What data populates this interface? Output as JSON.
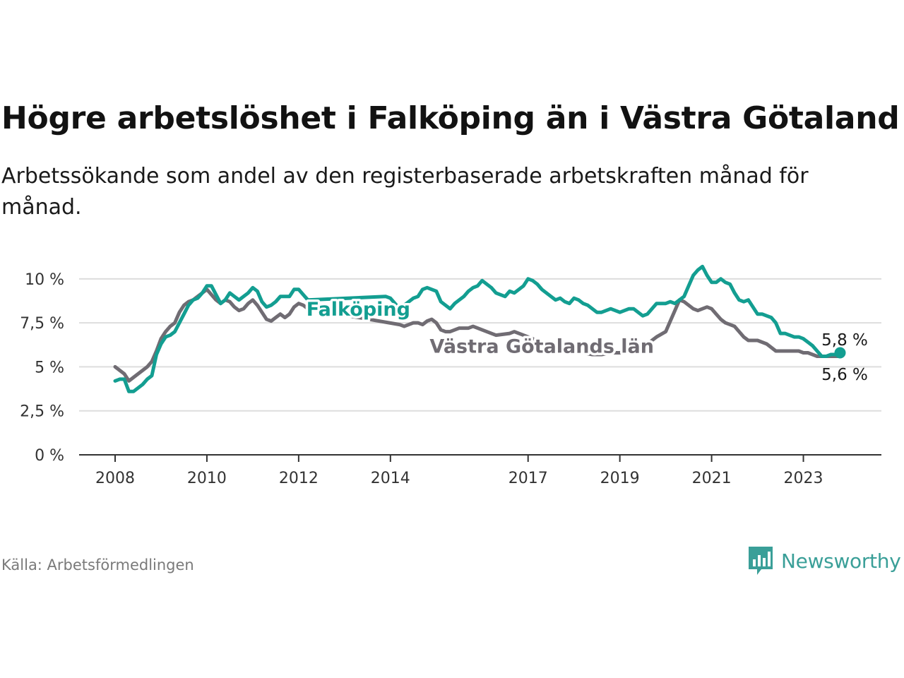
{
  "header": {
    "title": "Högre arbetslöshet i Falköping än i Västra Götaland",
    "subtitle": "Arbetssökande som andel av den registerbaserade arbetskraften månad för månad."
  },
  "footer": {
    "source": "Källa: Arbetsförmedlingen",
    "brand": "Newsworthy",
    "brand_icon": "bar-chart-speech-bubble-icon"
  },
  "colors": {
    "falkoping": "#139e91",
    "vastra": "#706c73",
    "grid": "#dddddd",
    "axis": "#333333",
    "brand": "#3a9f98"
  },
  "chart_data": {
    "type": "line",
    "xlim": [
      2008,
      2023.9
    ],
    "ylim": [
      0,
      10
    ],
    "yticks": [
      {
        "value": 0,
        "label": "0 %"
      },
      {
        "value": 2.5,
        "label": "2,5 %"
      },
      {
        "value": 5,
        "label": "5 %"
      },
      {
        "value": 7.5,
        "label": "7,5 %"
      },
      {
        "value": 10,
        "label": "10 %"
      }
    ],
    "xticks": [
      {
        "value": 2008,
        "label": "2008"
      },
      {
        "value": 2010,
        "label": "2010"
      },
      {
        "value": 2012,
        "label": "2012"
      },
      {
        "value": 2014,
        "label": "2014"
      },
      {
        "value": 2017,
        "label": "2017"
      },
      {
        "value": 2019,
        "label": "2019"
      },
      {
        "value": 2021,
        "label": "2021"
      },
      {
        "value": 2023,
        "label": "2023"
      }
    ],
    "series": [
      {
        "name": "Västra Götalands län",
        "color": "#706c73",
        "end_label": "5,6 %",
        "points": [
          [
            2008.0,
            5.0
          ],
          [
            2008.1,
            4.8
          ],
          [
            2008.2,
            4.6
          ],
          [
            2008.3,
            4.2
          ],
          [
            2008.4,
            4.4
          ],
          [
            2008.5,
            4.6
          ],
          [
            2008.6,
            4.8
          ],
          [
            2008.7,
            5.0
          ],
          [
            2008.8,
            5.3
          ],
          [
            2008.9,
            5.9
          ],
          [
            2009.0,
            6.6
          ],
          [
            2009.1,
            7.0
          ],
          [
            2009.2,
            7.3
          ],
          [
            2009.3,
            7.5
          ],
          [
            2009.4,
            8.1
          ],
          [
            2009.5,
            8.5
          ],
          [
            2009.6,
            8.7
          ],
          [
            2009.7,
            8.8
          ],
          [
            2009.8,
            9.0
          ],
          [
            2009.9,
            9.2
          ],
          [
            2010.0,
            9.4
          ],
          [
            2010.1,
            9.1
          ],
          [
            2010.2,
            8.8
          ],
          [
            2010.3,
            8.6
          ],
          [
            2010.4,
            8.8
          ],
          [
            2010.5,
            8.7
          ],
          [
            2010.6,
            8.4
          ],
          [
            2010.7,
            8.2
          ],
          [
            2010.8,
            8.3
          ],
          [
            2010.9,
            8.6
          ],
          [
            2011.0,
            8.8
          ],
          [
            2011.1,
            8.5
          ],
          [
            2011.2,
            8.1
          ],
          [
            2011.3,
            7.7
          ],
          [
            2011.4,
            7.6
          ],
          [
            2011.5,
            7.8
          ],
          [
            2011.6,
            8.0
          ],
          [
            2011.7,
            7.8
          ],
          [
            2011.8,
            8.0
          ],
          [
            2011.9,
            8.4
          ],
          [
            2012.0,
            8.6
          ],
          [
            2012.1,
            8.5
          ],
          [
            2012.2,
            8.3
          ],
          [
            2014.2,
            7.4
          ],
          [
            2014.3,
            7.3
          ],
          [
            2014.4,
            7.4
          ],
          [
            2014.5,
            7.5
          ],
          [
            2014.6,
            7.5
          ],
          [
            2014.7,
            7.4
          ],
          [
            2014.8,
            7.6
          ],
          [
            2014.9,
            7.7
          ],
          [
            2015.0,
            7.5
          ],
          [
            2015.1,
            7.1
          ],
          [
            2015.2,
            7.0
          ],
          [
            2015.3,
            7.0
          ],
          [
            2015.4,
            7.1
          ],
          [
            2015.5,
            7.2
          ],
          [
            2015.6,
            7.2
          ],
          [
            2015.7,
            7.2
          ],
          [
            2015.8,
            7.3
          ],
          [
            2015.9,
            7.2
          ],
          [
            2016.0,
            7.1
          ],
          [
            2016.1,
            7.0
          ],
          [
            2016.2,
            6.9
          ],
          [
            2016.3,
            6.8
          ],
          [
            2016.6,
            6.9
          ],
          [
            2016.7,
            7.0
          ],
          [
            2016.8,
            6.9
          ],
          [
            2016.9,
            6.8
          ],
          [
            2017.0,
            6.7
          ],
          [
            2017.1,
            6.6
          ],
          [
            2017.2,
            6.4
          ],
          [
            2017.3,
            6.3
          ],
          [
            2017.4,
            6.2
          ],
          [
            2017.6,
            6.0
          ],
          [
            2017.8,
            5.9
          ],
          [
            2018.0,
            5.8
          ],
          [
            2018.2,
            5.8
          ],
          [
            2018.4,
            5.7
          ],
          [
            2018.6,
            5.7
          ],
          [
            2018.8,
            5.8
          ],
          [
            2019.0,
            5.8
          ],
          [
            2019.2,
            5.9
          ],
          [
            2019.4,
            6.0
          ],
          [
            2019.6,
            6.3
          ],
          [
            2019.8,
            6.7
          ],
          [
            2020.0,
            7.0
          ],
          [
            2020.1,
            7.6
          ],
          [
            2020.2,
            8.2
          ],
          [
            2020.3,
            8.8
          ],
          [
            2020.4,
            8.7
          ],
          [
            2020.5,
            8.5
          ],
          [
            2020.6,
            8.3
          ],
          [
            2020.7,
            8.2
          ],
          [
            2020.8,
            8.3
          ],
          [
            2020.9,
            8.4
          ],
          [
            2021.0,
            8.3
          ],
          [
            2021.1,
            8.0
          ],
          [
            2021.2,
            7.7
          ],
          [
            2021.3,
            7.5
          ],
          [
            2021.4,
            7.4
          ],
          [
            2021.5,
            7.3
          ],
          [
            2021.6,
            7.0
          ],
          [
            2021.7,
            6.7
          ],
          [
            2021.8,
            6.5
          ],
          [
            2021.9,
            6.5
          ],
          [
            2022.0,
            6.5
          ],
          [
            2022.1,
            6.4
          ],
          [
            2022.2,
            6.3
          ],
          [
            2022.3,
            6.1
          ],
          [
            2022.4,
            5.9
          ],
          [
            2022.5,
            5.9
          ],
          [
            2022.6,
            5.9
          ],
          [
            2022.7,
            5.9
          ],
          [
            2022.8,
            5.9
          ],
          [
            2022.9,
            5.9
          ],
          [
            2023.0,
            5.8
          ],
          [
            2023.1,
            5.8
          ],
          [
            2023.2,
            5.7
          ],
          [
            2023.3,
            5.6
          ],
          [
            2023.4,
            5.6
          ],
          [
            2023.5,
            5.6
          ],
          [
            2023.6,
            5.6
          ],
          [
            2023.7,
            5.6
          ],
          [
            2023.8,
            5.6
          ]
        ]
      },
      {
        "name": "Falköping",
        "color": "#139e91",
        "end_label": "5,8 %",
        "points": [
          [
            2008.0,
            4.2
          ],
          [
            2008.1,
            4.3
          ],
          [
            2008.2,
            4.3
          ],
          [
            2008.3,
            3.6
          ],
          [
            2008.4,
            3.6
          ],
          [
            2008.5,
            3.8
          ],
          [
            2008.6,
            4.0
          ],
          [
            2008.7,
            4.3
          ],
          [
            2008.8,
            4.5
          ],
          [
            2008.9,
            5.7
          ],
          [
            2009.0,
            6.3
          ],
          [
            2009.1,
            6.7
          ],
          [
            2009.2,
            6.8
          ],
          [
            2009.3,
            7.0
          ],
          [
            2009.4,
            7.5
          ],
          [
            2009.5,
            8.0
          ],
          [
            2009.6,
            8.5
          ],
          [
            2009.7,
            8.8
          ],
          [
            2009.8,
            8.9
          ],
          [
            2009.9,
            9.2
          ],
          [
            2010.0,
            9.6
          ],
          [
            2010.1,
            9.6
          ],
          [
            2010.2,
            9.1
          ],
          [
            2010.3,
            8.6
          ],
          [
            2010.4,
            8.8
          ],
          [
            2010.5,
            9.2
          ],
          [
            2010.6,
            9.0
          ],
          [
            2010.7,
            8.8
          ],
          [
            2010.8,
            9.0
          ],
          [
            2010.9,
            9.2
          ],
          [
            2011.0,
            9.5
          ],
          [
            2011.1,
            9.3
          ],
          [
            2011.2,
            8.7
          ],
          [
            2011.3,
            8.4
          ],
          [
            2011.4,
            8.5
          ],
          [
            2011.5,
            8.7
          ],
          [
            2011.6,
            9.0
          ],
          [
            2011.7,
            9.0
          ],
          [
            2011.8,
            9.0
          ],
          [
            2011.9,
            9.4
          ],
          [
            2012.0,
            9.4
          ],
          [
            2012.1,
            9.1
          ],
          [
            2012.2,
            8.8
          ],
          [
            2013.9,
            9.0
          ],
          [
            2014.0,
            8.9
          ],
          [
            2014.1,
            8.6
          ],
          [
            2014.2,
            8.3
          ],
          [
            2014.3,
            8.5
          ],
          [
            2014.4,
            8.7
          ],
          [
            2014.5,
            8.9
          ],
          [
            2014.6,
            9.0
          ],
          [
            2014.7,
            9.4
          ],
          [
            2014.8,
            9.5
          ],
          [
            2014.9,
            9.4
          ],
          [
            2015.0,
            9.3
          ],
          [
            2015.1,
            8.7
          ],
          [
            2015.2,
            8.5
          ],
          [
            2015.3,
            8.3
          ],
          [
            2015.4,
            8.6
          ],
          [
            2015.5,
            8.8
          ],
          [
            2015.6,
            9.0
          ],
          [
            2015.7,
            9.3
          ],
          [
            2015.8,
            9.5
          ],
          [
            2015.9,
            9.6
          ],
          [
            2016.0,
            9.9
          ],
          [
            2016.1,
            9.7
          ],
          [
            2016.2,
            9.5
          ],
          [
            2016.3,
            9.2
          ],
          [
            2016.4,
            9.1
          ],
          [
            2016.5,
            9.0
          ],
          [
            2016.6,
            9.3
          ],
          [
            2016.7,
            9.2
          ],
          [
            2016.8,
            9.4
          ],
          [
            2016.9,
            9.6
          ],
          [
            2017.0,
            10.0
          ],
          [
            2017.1,
            9.9
          ],
          [
            2017.2,
            9.7
          ],
          [
            2017.3,
            9.4
          ],
          [
            2017.4,
            9.2
          ],
          [
            2017.5,
            9.0
          ],
          [
            2017.6,
            8.8
          ],
          [
            2017.7,
            8.9
          ],
          [
            2017.8,
            8.7
          ],
          [
            2017.9,
            8.6
          ],
          [
            2018.0,
            8.9
          ],
          [
            2018.1,
            8.8
          ],
          [
            2018.2,
            8.6
          ],
          [
            2018.3,
            8.5
          ],
          [
            2018.4,
            8.3
          ],
          [
            2018.5,
            8.1
          ],
          [
            2018.6,
            8.1
          ],
          [
            2018.7,
            8.2
          ],
          [
            2018.8,
            8.3
          ],
          [
            2018.9,
            8.2
          ],
          [
            2019.0,
            8.1
          ],
          [
            2019.1,
            8.2
          ],
          [
            2019.2,
            8.3
          ],
          [
            2019.3,
            8.3
          ],
          [
            2019.4,
            8.1
          ],
          [
            2019.5,
            7.9
          ],
          [
            2019.6,
            8.0
          ],
          [
            2019.7,
            8.3
          ],
          [
            2019.8,
            8.6
          ],
          [
            2019.9,
            8.6
          ],
          [
            2020.0,
            8.6
          ],
          [
            2020.1,
            8.7
          ],
          [
            2020.2,
            8.6
          ],
          [
            2020.3,
            8.8
          ],
          [
            2020.4,
            9.0
          ],
          [
            2020.5,
            9.6
          ],
          [
            2020.6,
            10.2
          ],
          [
            2020.7,
            10.5
          ],
          [
            2020.8,
            10.7
          ],
          [
            2020.9,
            10.2
          ],
          [
            2021.0,
            9.8
          ],
          [
            2021.1,
            9.8
          ],
          [
            2021.2,
            10.0
          ],
          [
            2021.3,
            9.8
          ],
          [
            2021.4,
            9.7
          ],
          [
            2021.5,
            9.2
          ],
          [
            2021.6,
            8.8
          ],
          [
            2021.7,
            8.7
          ],
          [
            2021.8,
            8.8
          ],
          [
            2021.9,
            8.4
          ],
          [
            2022.0,
            8.0
          ],
          [
            2022.1,
            8.0
          ],
          [
            2022.2,
            7.9
          ],
          [
            2022.3,
            7.8
          ],
          [
            2022.4,
            7.5
          ],
          [
            2022.5,
            6.9
          ],
          [
            2022.6,
            6.9
          ],
          [
            2022.7,
            6.8
          ],
          [
            2022.8,
            6.7
          ],
          [
            2022.9,
            6.7
          ],
          [
            2023.0,
            6.6
          ],
          [
            2023.1,
            6.4
          ],
          [
            2023.2,
            6.2
          ],
          [
            2023.3,
            5.9
          ],
          [
            2023.4,
            5.6
          ],
          [
            2023.5,
            5.6
          ],
          [
            2023.6,
            5.7
          ],
          [
            2023.7,
            5.7
          ],
          [
            2023.8,
            5.8
          ]
        ]
      }
    ],
    "annotations": [
      {
        "text": "Falköping",
        "series": "Falköping",
        "x": 2013.3,
        "y": 8.3
      },
      {
        "text": "Västra Götalands län",
        "series": "Västra Götalands län",
        "x": 2017.3,
        "y": 6.2
      }
    ]
  }
}
